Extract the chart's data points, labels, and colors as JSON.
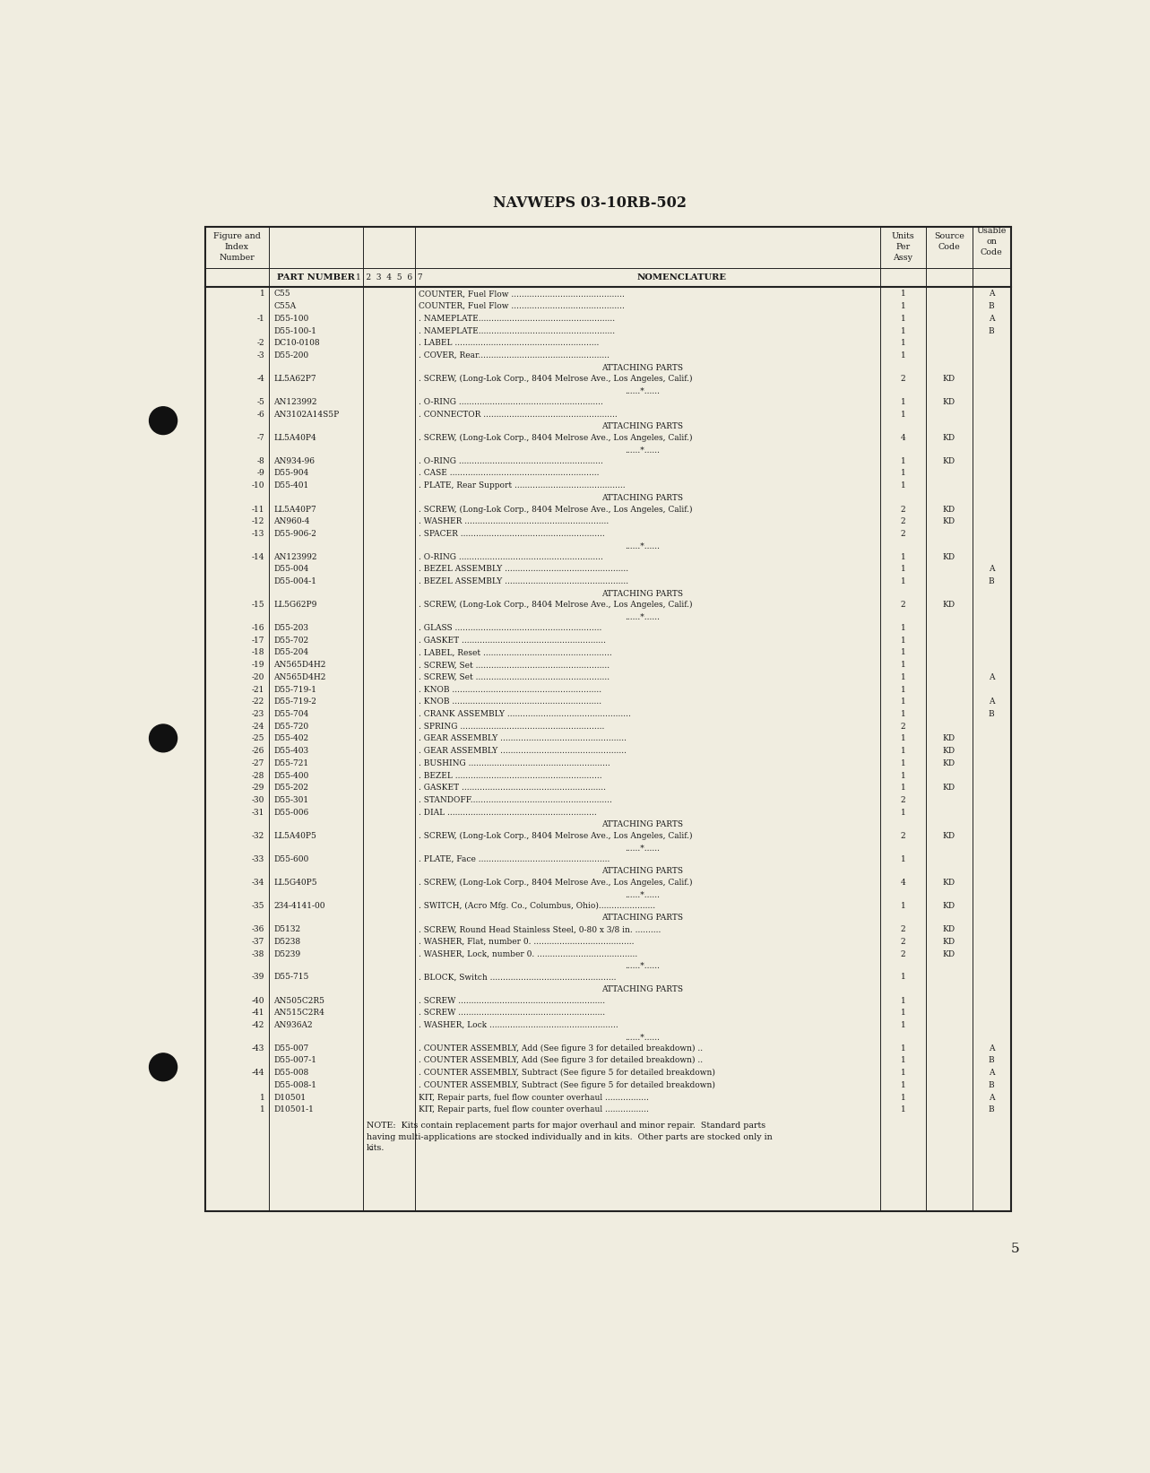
{
  "title": "NAVWEPS 03-10RB-502",
  "page_num": "5",
  "bg_color": "#f0ede0",
  "rows": [
    {
      "fig": "1",
      "part": "C55",
      "nom": "COUNTER, Fuel Flow ............................................",
      "units": "1",
      "source": "",
      "usable": "A",
      "type": "data"
    },
    {
      "fig": "",
      "part": "C55A",
      "nom": "COUNTER, Fuel Flow ............................................",
      "units": "1",
      "source": "",
      "usable": "B",
      "type": "data"
    },
    {
      "fig": "-1",
      "part": "D55-100",
      "nom": ". NAMEPLATE.....................................................",
      "units": "1",
      "source": "",
      "usable": "A",
      "type": "data"
    },
    {
      "fig": "",
      "part": "D55-100-1",
      "nom": ". NAMEPLATE.....................................................",
      "units": "1",
      "source": "",
      "usable": "B",
      "type": "data"
    },
    {
      "fig": "-2",
      "part": "DC10-0108",
      "nom": ". LABEL ........................................................",
      "units": "1",
      "source": "",
      "usable": "",
      "type": "data"
    },
    {
      "fig": "-3",
      "part": "D55-200",
      "nom": ". COVER, Rear...................................................",
      "units": "1",
      "source": "",
      "usable": "",
      "type": "data"
    },
    {
      "fig": "",
      "part": "",
      "nom": "ATTACHING PARTS",
      "units": "",
      "source": "",
      "usable": "",
      "type": "section"
    },
    {
      "fig": "-4",
      "part": "LL5A62P7",
      "nom": ". SCREW, (Long-Lok Corp., 8404 Melrose Ave., Los Angeles, Calif.)",
      "units": "2",
      "source": "KD",
      "usable": "",
      "type": "data"
    },
    {
      "fig": "",
      "part": "",
      "nom": "......*......",
      "units": "",
      "source": "",
      "usable": "",
      "type": "separator"
    },
    {
      "fig": "-5",
      "part": "AN123992",
      "nom": ". O-RING ........................................................",
      "units": "1",
      "source": "KD",
      "usable": "",
      "type": "data"
    },
    {
      "fig": "-6",
      "part": "AN3102A14S5P",
      "nom": ". CONNECTOR ....................................................",
      "units": "1",
      "source": "",
      "usable": "",
      "type": "data"
    },
    {
      "fig": "",
      "part": "",
      "nom": "ATTACHING PARTS",
      "units": "",
      "source": "",
      "usable": "",
      "type": "section"
    },
    {
      "fig": "-7",
      "part": "LL5A40P4",
      "nom": ". SCREW, (Long-Lok Corp., 8404 Melrose Ave., Los Angeles, Calif.)",
      "units": "4",
      "source": "KD",
      "usable": "",
      "type": "data"
    },
    {
      "fig": "",
      "part": "",
      "nom": "......*......",
      "units": "",
      "source": "",
      "usable": "",
      "type": "separator"
    },
    {
      "fig": "-8",
      "part": "AN934-96",
      "nom": ". O-RING ........................................................",
      "units": "1",
      "source": "KD",
      "usable": "",
      "type": "data"
    },
    {
      "fig": "-9",
      "part": "D55-904",
      "nom": ". CASE ..........................................................",
      "units": "1",
      "source": "",
      "usable": "",
      "type": "data"
    },
    {
      "fig": "-10",
      "part": "D55-401",
      "nom": ". PLATE, Rear Support ...........................................",
      "units": "1",
      "source": "",
      "usable": "",
      "type": "data"
    },
    {
      "fig": "",
      "part": "",
      "nom": "ATTACHING PARTS",
      "units": "",
      "source": "",
      "usable": "",
      "type": "section"
    },
    {
      "fig": "-11",
      "part": "LL5A40P7",
      "nom": ". SCREW, (Long-Lok Corp., 8404 Melrose Ave., Los Angeles, Calif.)",
      "units": "2",
      "source": "KD",
      "usable": "",
      "type": "data"
    },
    {
      "fig": "-12",
      "part": "AN960-4",
      "nom": ". WASHER ........................................................",
      "units": "2",
      "source": "KD",
      "usable": "",
      "type": "data"
    },
    {
      "fig": "-13",
      "part": "D55-906-2",
      "nom": ". SPACER ........................................................",
      "units": "2",
      "source": "",
      "usable": "",
      "type": "data"
    },
    {
      "fig": "",
      "part": "",
      "nom": "......*......",
      "units": "",
      "source": "",
      "usable": "",
      "type": "separator"
    },
    {
      "fig": "-14",
      "part": "AN123992",
      "nom": ". O-RING ........................................................",
      "units": "1",
      "source": "KD",
      "usable": "",
      "type": "data"
    },
    {
      "fig": "",
      "part": "D55-004",
      "nom": ". BEZEL ASSEMBLY ................................................",
      "units": "1",
      "source": "",
      "usable": "A",
      "type": "data"
    },
    {
      "fig": "",
      "part": "D55-004-1",
      "nom": ". BEZEL ASSEMBLY ................................................",
      "units": "1",
      "source": "",
      "usable": "B",
      "type": "data"
    },
    {
      "fig": "",
      "part": "",
      "nom": "ATTACHING PARTS",
      "units": "",
      "source": "",
      "usable": "",
      "type": "section"
    },
    {
      "fig": "-15",
      "part": "LL5G62P9",
      "nom": ". SCREW, (Long-Lok Corp., 8404 Melrose Ave., Los Angeles, Calif.)",
      "units": "2",
      "source": "KD",
      "usable": "",
      "type": "data"
    },
    {
      "fig": "",
      "part": "",
      "nom": "......*......",
      "units": "",
      "source": "",
      "usable": "",
      "type": "separator"
    },
    {
      "fig": "-16",
      "part": "D55-203",
      "nom": ". GLASS .........................................................",
      "units": "1",
      "source": "",
      "usable": "",
      "type": "data"
    },
    {
      "fig": "-17",
      "part": "D55-702",
      "nom": ". GASKET ........................................................",
      "units": "1",
      "source": "",
      "usable": "",
      "type": "data"
    },
    {
      "fig": "-18",
      "part": "D55-204",
      "nom": ". LABEL, Reset ..................................................",
      "units": "1",
      "source": "",
      "usable": "",
      "type": "data"
    },
    {
      "fig": "-19",
      "part": "AN565D4H2",
      "nom": ". SCREW, Set ....................................................",
      "units": "1",
      "source": "",
      "usable": "",
      "type": "data"
    },
    {
      "fig": "-20",
      "part": "AN565D4H2",
      "nom": ". SCREW, Set ....................................................",
      "units": "1",
      "source": "",
      "usable": "A",
      "type": "data"
    },
    {
      "fig": "-21",
      "part": "D55-719-1",
      "nom": ". KNOB ..........................................................",
      "units": "1",
      "source": "",
      "usable": "",
      "type": "data"
    },
    {
      "fig": "-22",
      "part": "D55-719-2",
      "nom": ". KNOB ..........................................................",
      "units": "1",
      "source": "",
      "usable": "A",
      "type": "data"
    },
    {
      "fig": "-23",
      "part": "D55-704",
      "nom": ". CRANK ASSEMBLY ................................................",
      "units": "1",
      "source": "",
      "usable": "B",
      "type": "data"
    },
    {
      "fig": "-24",
      "part": "D55-720",
      "nom": ". SPRING ........................................................",
      "units": "2",
      "source": "",
      "usable": "",
      "type": "data"
    },
    {
      "fig": "-25",
      "part": "D55-402",
      "nom": ". GEAR ASSEMBLY .................................................",
      "units": "1",
      "source": "KD",
      "usable": "",
      "type": "data"
    },
    {
      "fig": "-26",
      "part": "D55-403",
      "nom": ". GEAR ASSEMBLY .................................................",
      "units": "1",
      "source": "KD",
      "usable": "",
      "type": "data"
    },
    {
      "fig": "-27",
      "part": "D55-721",
      "nom": ". BUSHING .......................................................",
      "units": "1",
      "source": "KD",
      "usable": "",
      "type": "data"
    },
    {
      "fig": "-28",
      "part": "D55-400",
      "nom": ". BEZEL .........................................................",
      "units": "1",
      "source": "",
      "usable": "",
      "type": "data"
    },
    {
      "fig": "-29",
      "part": "D55-202",
      "nom": ". GASKET ........................................................",
      "units": "1",
      "source": "KD",
      "usable": "",
      "type": "data"
    },
    {
      "fig": "-30",
      "part": "D55-301",
      "nom": ". STANDOFF.......................................................",
      "units": "2",
      "source": "",
      "usable": "",
      "type": "data"
    },
    {
      "fig": "-31",
      "part": "D55-006",
      "nom": ". DIAL ..........................................................",
      "units": "1",
      "source": "",
      "usable": "",
      "type": "data"
    },
    {
      "fig": "",
      "part": "",
      "nom": "ATTACHING PARTS",
      "units": "",
      "source": "",
      "usable": "",
      "type": "section"
    },
    {
      "fig": "-32",
      "part": "LL5A40P5",
      "nom": ". SCREW, (Long-Lok Corp., 8404 Melrose Ave., Los Angeles, Calif.)",
      "units": "2",
      "source": "KD",
      "usable": "",
      "type": "data"
    },
    {
      "fig": "",
      "part": "",
      "nom": "......*......",
      "units": "",
      "source": "",
      "usable": "",
      "type": "separator"
    },
    {
      "fig": "-33",
      "part": "D55-600",
      "nom": ". PLATE, Face ...................................................",
      "units": "1",
      "source": "",
      "usable": "",
      "type": "data"
    },
    {
      "fig": "",
      "part": "",
      "nom": "ATTACHING PARTS",
      "units": "",
      "source": "",
      "usable": "",
      "type": "section"
    },
    {
      "fig": "-34",
      "part": "LL5G40P5",
      "nom": ". SCREW, (Long-Lok Corp., 8404 Melrose Ave., Los Angeles, Calif.)",
      "units": "4",
      "source": "KD",
      "usable": "",
      "type": "data"
    },
    {
      "fig": "",
      "part": "",
      "nom": "......*......",
      "units": "",
      "source": "",
      "usable": "",
      "type": "separator"
    },
    {
      "fig": "-35",
      "part": "234-4141-00",
      "nom": ". SWITCH, (Acro Mfg. Co., Columbus, Ohio)......................",
      "units": "1",
      "source": "KD",
      "usable": "",
      "type": "data"
    },
    {
      "fig": "",
      "part": "",
      "nom": "ATTACHING PARTS",
      "units": "",
      "source": "",
      "usable": "",
      "type": "section"
    },
    {
      "fig": "-36",
      "part": "D5132",
      "nom": ". SCREW, Round Head Stainless Steel, 0-80 x 3/8 in. ..........",
      "units": "2",
      "source": "KD",
      "usable": "",
      "type": "data"
    },
    {
      "fig": "-37",
      "part": "D5238",
      "nom": ". WASHER, Flat, number 0. .......................................",
      "units": "2",
      "source": "KD",
      "usable": "",
      "type": "data"
    },
    {
      "fig": "-38",
      "part": "D5239",
      "nom": ". WASHER, Lock, number 0. .......................................",
      "units": "2",
      "source": "KD",
      "usable": "",
      "type": "data"
    },
    {
      "fig": "",
      "part": "",
      "nom": "......*......",
      "units": "",
      "source": "",
      "usable": "",
      "type": "separator"
    },
    {
      "fig": "-39",
      "part": "D55-715",
      "nom": ". BLOCK, Switch .................................................",
      "units": "1",
      "source": "",
      "usable": "",
      "type": "data"
    },
    {
      "fig": "",
      "part": "",
      "nom": "ATTACHING PARTS",
      "units": "",
      "source": "",
      "usable": "",
      "type": "section"
    },
    {
      "fig": "-40",
      "part": "AN505C2R5",
      "nom": ". SCREW .........................................................",
      "units": "1",
      "source": "",
      "usable": "",
      "type": "data"
    },
    {
      "fig": "-41",
      "part": "AN515C2R4",
      "nom": ". SCREW .........................................................",
      "units": "1",
      "source": "",
      "usable": "",
      "type": "data"
    },
    {
      "fig": "-42",
      "part": "AN936A2",
      "nom": ". WASHER, Lock ..................................................",
      "units": "1",
      "source": "",
      "usable": "",
      "type": "data"
    },
    {
      "fig": "",
      "part": "",
      "nom": "......*......",
      "units": "",
      "source": "",
      "usable": "",
      "type": "separator"
    },
    {
      "fig": "-43",
      "part": "D55-007",
      "nom": ". COUNTER ASSEMBLY, Add (See figure 3 for detailed breakdown) ..",
      "units": "1",
      "source": "",
      "usable": "A",
      "type": "data"
    },
    {
      "fig": "",
      "part": "D55-007-1",
      "nom": ". COUNTER ASSEMBLY, Add (See figure 3 for detailed breakdown) ..",
      "units": "1",
      "source": "",
      "usable": "B",
      "type": "data"
    },
    {
      "fig": "-44",
      "part": "D55-008",
      "nom": ". COUNTER ASSEMBLY, Subtract (See figure 5 for detailed breakdown)",
      "units": "1",
      "source": "",
      "usable": "A",
      "type": "data"
    },
    {
      "fig": "",
      "part": "D55-008-1",
      "nom": ". COUNTER ASSEMBLY, Subtract (See figure 5 for detailed breakdown)",
      "units": "1",
      "source": "",
      "usable": "B",
      "type": "data"
    },
    {
      "fig": "1",
      "part": "D10501",
      "nom": "KIT, Repair parts, fuel flow counter overhaul .................",
      "units": "1",
      "source": "",
      "usable": "A",
      "type": "data"
    },
    {
      "fig": "1",
      "part": "D10501-1",
      "nom": "KIT, Repair parts, fuel flow counter overhaul .................",
      "units": "1",
      "source": "",
      "usable": "B",
      "type": "data"
    }
  ],
  "note": "NOTE:  Kits contain replacement parts for major overhaul and minor repair.  Standard parts\nhaving multi-applications are stocked individually and in kits.  Other parts are stocked only in\nkits."
}
